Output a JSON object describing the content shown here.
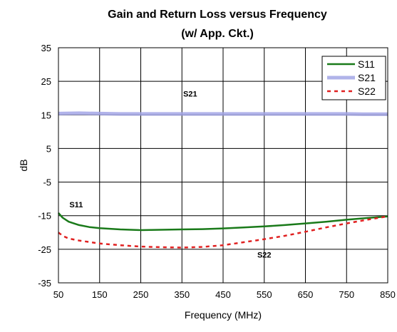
{
  "chart_data": {
    "type": "line",
    "title": "Gain and Return Loss versus Frequency",
    "subtitle": "(w/ App. Ckt.)",
    "xlabel": "Frequency (MHz)",
    "ylabel": "dB",
    "xlim": [
      50,
      850
    ],
    "ylim": [
      -35,
      35
    ],
    "x_ticks": [
      50,
      150,
      250,
      350,
      450,
      550,
      650,
      750,
      850
    ],
    "y_ticks": [
      35,
      25,
      15,
      5,
      -5,
      -15,
      -25,
      -35
    ],
    "x_tick_labels": [
      "50",
      "150",
      "250",
      "350",
      "450",
      "550",
      "650",
      "750",
      "850"
    ],
    "y_tick_labels": [
      "35",
      "25",
      "15",
      "5",
      "-5",
      "-15",
      "-25",
      "-35"
    ],
    "grid": true,
    "legend_position": "top-right",
    "series": [
      {
        "name": "S11",
        "color": "#1a7a1a",
        "style": "solid",
        "x": [
          50,
          60,
          75,
          100,
          125,
          150,
          200,
          250,
          300,
          350,
          400,
          450,
          500,
          550,
          600,
          650,
          700,
          750,
          800,
          850
        ],
        "y": [
          -14.2,
          -15.6,
          -16.8,
          -17.8,
          -18.4,
          -18.7,
          -19.1,
          -19.3,
          -19.2,
          -19.1,
          -19.0,
          -18.8,
          -18.5,
          -18.2,
          -17.8,
          -17.3,
          -16.8,
          -16.2,
          -15.7,
          -15.2
        ]
      },
      {
        "name": "S21",
        "color": "#a3a6e6",
        "style": "solid",
        "x": [
          50,
          100,
          150,
          200,
          250,
          300,
          350,
          400,
          450,
          500,
          550,
          600,
          650,
          700,
          750,
          800,
          850
        ],
        "y": [
          15.4,
          15.5,
          15.4,
          15.3,
          15.3,
          15.3,
          15.3,
          15.3,
          15.3,
          15.3,
          15.3,
          15.3,
          15.3,
          15.3,
          15.3,
          15.2,
          15.2
        ]
      },
      {
        "name": "S22",
        "color": "#e02020",
        "style": "dashed",
        "x": [
          50,
          60,
          75,
          100,
          150,
          200,
          250,
          300,
          350,
          400,
          450,
          500,
          550,
          600,
          650,
          700,
          750,
          800,
          850
        ],
        "y": [
          -20.0,
          -21.0,
          -21.8,
          -22.4,
          -23.3,
          -23.8,
          -24.2,
          -24.4,
          -24.5,
          -24.3,
          -23.8,
          -22.9,
          -22.0,
          -21.0,
          -19.8,
          -18.5,
          -17.3,
          -16.2,
          -15.2
        ]
      }
    ],
    "annotations": [
      {
        "text": "S21",
        "x": 370,
        "y": 20.5
      },
      {
        "text": "S11",
        "x": 93,
        "y": -12.5
      },
      {
        "text": "S22",
        "x": 550,
        "y": -27.5
      }
    ]
  }
}
